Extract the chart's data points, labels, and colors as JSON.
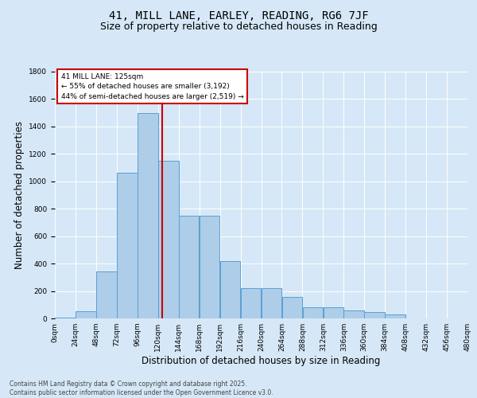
{
  "title_line1": "41, MILL LANE, EARLEY, READING, RG6 7JF",
  "title_line2": "Size of property relative to detached houses in Reading",
  "xlabel": "Distribution of detached houses by size in Reading",
  "ylabel": "Number of detached properties",
  "bins": [
    0,
    24,
    48,
    72,
    96,
    120,
    144,
    168,
    192,
    216,
    240,
    264,
    288,
    312,
    336,
    360,
    384,
    408,
    432,
    456,
    480
  ],
  "bar_values": [
    5,
    50,
    340,
    1060,
    1500,
    1150,
    750,
    750,
    420,
    220,
    220,
    155,
    80,
    80,
    60,
    45,
    30,
    0,
    0,
    0
  ],
  "bar_color": "#aecde8",
  "bar_edge_color": "#5a9fd4",
  "property_sqm": 125,
  "vline_color": "#cc0000",
  "annotation_text": "41 MILL LANE: 125sqm\n← 55% of detached houses are smaller (3,192)\n44% of semi-detached houses are larger (2,519) →",
  "annotation_box_color": "#ffffff",
  "annotation_box_edge": "#cc0000",
  "background_color": "#d6e8f7",
  "plot_bg_color": "#d6e8f7",
  "footer_text": "Contains HM Land Registry data © Crown copyright and database right 2025.\nContains public sector information licensed under the Open Government Licence v3.0.",
  "ylim": [
    0,
    1800
  ],
  "yticks": [
    0,
    200,
    400,
    600,
    800,
    1000,
    1200,
    1400,
    1600,
    1800
  ],
  "grid_color": "#ffffff",
  "title_fontsize": 10,
  "subtitle_fontsize": 9,
  "tick_fontsize": 6.5,
  "label_fontsize": 8.5,
  "footer_fontsize": 5.5
}
